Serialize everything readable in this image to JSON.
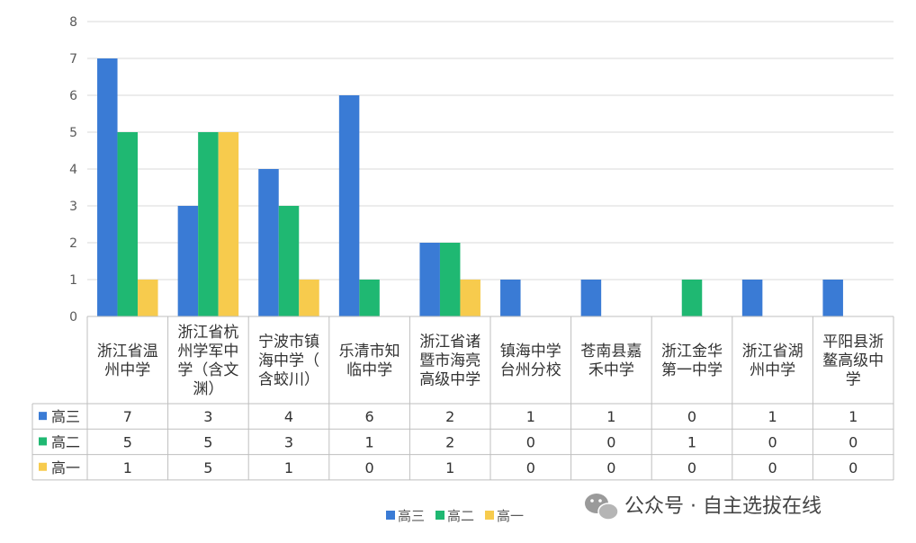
{
  "chart_data": {
    "type": "bar",
    "categories": [
      [
        "浙江省温",
        "州中学"
      ],
      [
        "浙江省杭",
        "州学军中",
        "学（含文",
        "渊）"
      ],
      [
        "宁波市镇",
        "海中学（",
        "含蛟川）"
      ],
      [
        "乐清市知",
        "临中学"
      ],
      [
        "浙江省诸",
        "暨市海亮",
        "高级中学"
      ],
      [
        "镇海中学",
        "台州分校"
      ],
      [
        "苍南县嘉",
        "禾中学"
      ],
      [
        "浙江金华",
        "第一中学"
      ],
      [
        "浙江省湖",
        "州中学"
      ],
      [
        "平阳县浙",
        "鳌高级中",
        "学"
      ]
    ],
    "series": [
      {
        "name": "高三",
        "color": "#3a7bd5",
        "values": [
          7,
          3,
          4,
          6,
          2,
          1,
          1,
          0,
          1,
          1
        ]
      },
      {
        "name": "高二",
        "color": "#1fb872",
        "values": [
          5,
          5,
          3,
          1,
          2,
          0,
          0,
          1,
          0,
          0
        ]
      },
      {
        "name": "高一",
        "color": "#f7cb4d",
        "values": [
          1,
          5,
          1,
          0,
          1,
          0,
          0,
          0,
          0,
          0
        ]
      }
    ],
    "ylim": [
      0,
      8
    ],
    "yticks": [
      "0",
      "1",
      "2",
      "3",
      "4",
      "5",
      "6",
      "7",
      "8"
    ],
    "grid": true,
    "legend_position": "bottom",
    "data_table": true
  },
  "watermark": {
    "icon": "wechat-icon",
    "text": "公众号 · 自主选拔在线"
  }
}
